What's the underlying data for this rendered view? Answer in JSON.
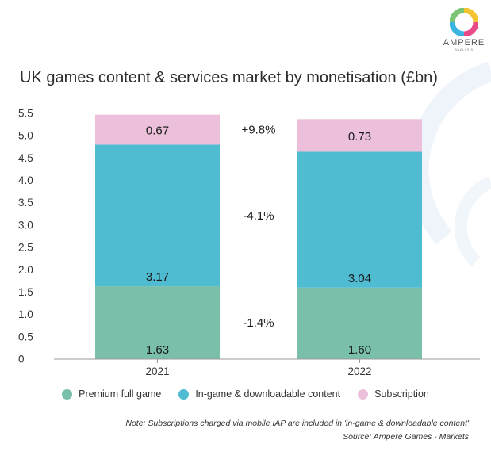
{
  "brand": {
    "name": "AMPERE",
    "tagline": "ANALYSIS"
  },
  "colors": {
    "premium": "#79bfa9",
    "ingame": "#4fbcd2",
    "subscription": "#ecc0da",
    "axis_text": "#333333",
    "axis_line": "#9a9a9a",
    "logo": [
      "#f4c430",
      "#e84a8a",
      "#3ab5e0",
      "#7cc576"
    ]
  },
  "chart_data": {
    "type": "bar",
    "stacked": true,
    "title": "UK games content & services market by monetisation (£bn)",
    "categories": [
      "2021",
      "2022"
    ],
    "series": [
      {
        "name": "Premium full game",
        "values": [
          1.63,
          1.6
        ],
        "color": "#79bfa9",
        "change": "-1.4%"
      },
      {
        "name": "In-game & downloadable content",
        "values": [
          3.17,
          3.04
        ],
        "color": "#4fbcd2",
        "change": "-4.1%"
      },
      {
        "name": "Subscription",
        "values": [
          0.67,
          0.73
        ],
        "color": "#ecc0da",
        "change": "+9.8%"
      }
    ],
    "data_labels": [
      [
        "1.63",
        "3.17",
        "0.67"
      ],
      [
        "1.60",
        "3.04",
        "0.73"
      ]
    ],
    "ylim": [
      0,
      5.5
    ],
    "yticks": [
      "0",
      "0.5",
      "1.0",
      "1.5",
      "2.0",
      "2.5",
      "3.0",
      "3.5",
      "4.0",
      "4.5",
      "5.0",
      "5.5"
    ],
    "xlabel": "",
    "ylabel": "",
    "grid": false,
    "legend_position": "bottom"
  },
  "footer": {
    "note": "Note: Subscriptions charged via mobile IAP are included in 'in-game & downloadable content'",
    "source": "Source: Ampere Games - Markets"
  }
}
